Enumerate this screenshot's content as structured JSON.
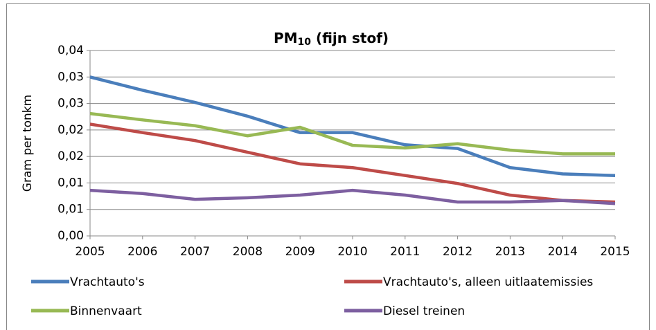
{
  "chart_data": {
    "type": "line",
    "title": {
      "text": "PM",
      "subscript": "10",
      "suffix": " (fijn stof)"
    },
    "y_label": "Gram per tonkm",
    "x": [
      2005,
      2006,
      2007,
      2008,
      2009,
      2010,
      2011,
      2012,
      2013,
      2014,
      2015
    ],
    "xlim": [
      2005,
      2015
    ],
    "xticks": [
      2005,
      2006,
      2007,
      2008,
      2009,
      2010,
      2011,
      2012,
      2013,
      2014,
      2015
    ],
    "ylim": [
      0,
      0.035
    ],
    "yticks": [
      {
        "value": 0,
        "label": "0,00"
      },
      {
        "value": 0.005,
        "label": "0,01"
      },
      {
        "value": 0.01,
        "label": "0,01"
      },
      {
        "value": 0.015,
        "label": "0,02"
      },
      {
        "value": 0.02,
        "label": "0,02"
      },
      {
        "value": 0.025,
        "label": "0,03"
      },
      {
        "value": 0.03,
        "label": "0,03"
      },
      {
        "value": 0.035,
        "label": "0,04"
      }
    ],
    "grid": true,
    "legend": "bottom",
    "series": [
      {
        "name": "Vrachtauto's",
        "color": "#4a7ebb",
        "values": [
          0.03,
          0.0275,
          0.0252,
          0.0226,
          0.0195,
          0.0195,
          0.0172,
          0.0165,
          0.0129,
          0.0117,
          0.0114
        ]
      },
      {
        "name": "Vrachtauto's, alleen uitlaatemissies",
        "color": "#be4b48",
        "values": [
          0.0211,
          0.0195,
          0.018,
          0.0158,
          0.0136,
          0.0129,
          0.0114,
          0.0099,
          0.0077,
          0.0067,
          0.0064
        ]
      },
      {
        "name": "Binnenvaart",
        "color": "#98b954",
        "values": [
          0.0231,
          0.0219,
          0.0208,
          0.0189,
          0.0205,
          0.0171,
          0.0166,
          0.0174,
          0.0162,
          0.0155,
          0.0155
        ]
      },
      {
        "name": "Diesel treinen",
        "color": "#7d5fa0",
        "values": [
          0.0086,
          0.008,
          0.0069,
          0.0072,
          0.0077,
          0.0086,
          0.0077,
          0.0064,
          0.0064,
          0.0067,
          0.0061
        ]
      }
    ]
  }
}
